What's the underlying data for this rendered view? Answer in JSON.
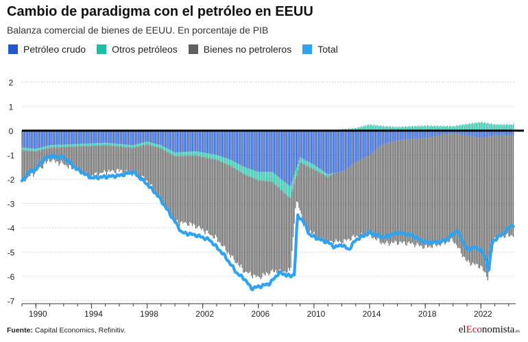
{
  "title": "Cambio de paradigma con el petróleo en EEUU",
  "subtitle": "Balanza comercial de bienes de EEUU. En porcentaje de PIB",
  "legend": [
    {
      "label": "Petróleo crudo",
      "color": "#2257cc"
    },
    {
      "label": "Otros petróleos",
      "color": "#1fbfa6"
    },
    {
      "label": "Bienes no petroleros",
      "color": "#606060"
    },
    {
      "label": "Total",
      "color": "#2ea3f2"
    }
  ],
  "footer": {
    "source_label": "Fuente:",
    "source_text": "Capital Economics, Refinitiv."
  },
  "brand": {
    "prefix": "el",
    "accent": "Eco",
    "suffix": "nomista",
    "tld": ".es"
  },
  "chart_data": {
    "type": "bar",
    "stacked": true,
    "title": "Cambio de paradigma con el petróleo en EEUU",
    "subtitle": "Balanza comercial de bienes de EEUU. En porcentaje de PIB",
    "ylim": [
      -7,
      2
    ],
    "yticks": [
      2,
      1,
      0,
      -1,
      -2,
      -3,
      -4,
      -5,
      -6,
      -7
    ],
    "xlim": [
      1989,
      2024.5
    ],
    "xticks": [
      1990,
      1994,
      1998,
      2002,
      2006,
      2010,
      2014,
      2018,
      2022
    ],
    "grid": "horizontal dotted",
    "legend_position": "top",
    "frequency": "monthly",
    "colors": {
      "crude": "#2257cc",
      "other": "#1fbfa6",
      "nonpetroleum": "#606060",
      "total": "#2ea3f2"
    },
    "series": [
      {
        "name": "Petróleo crudo",
        "key": "crude",
        "points": [
          [
            1989.0,
            -0.7
          ],
          [
            1990.0,
            -0.75
          ],
          [
            1991.0,
            -0.6
          ],
          [
            1993.0,
            -0.55
          ],
          [
            1995.0,
            -0.5
          ],
          [
            1996.0,
            -0.55
          ],
          [
            1997.0,
            -0.6
          ],
          [
            1998.0,
            -0.45
          ],
          [
            1999.0,
            -0.6
          ],
          [
            2000.0,
            -0.9
          ],
          [
            2001.5,
            -0.85
          ],
          [
            2003.0,
            -1.0
          ],
          [
            2004.0,
            -1.2
          ],
          [
            2005.0,
            -1.5
          ],
          [
            2006.0,
            -1.7
          ],
          [
            2007.0,
            -1.7
          ],
          [
            2008.3,
            -2.3
          ],
          [
            2009.0,
            -1.1
          ],
          [
            2010.0,
            -1.4
          ],
          [
            2011.0,
            -1.8
          ],
          [
            2012.0,
            -1.7
          ],
          [
            2013.0,
            -1.3
          ],
          [
            2014.0,
            -1.0
          ],
          [
            2015.0,
            -0.55
          ],
          [
            2016.0,
            -0.4
          ],
          [
            2018.0,
            -0.3
          ],
          [
            2019.0,
            -0.2
          ],
          [
            2020.0,
            -0.1
          ],
          [
            2021.0,
            -0.2
          ],
          [
            2022.0,
            -0.3
          ],
          [
            2023.0,
            -0.2
          ],
          [
            2024.3,
            -0.2
          ]
        ]
      },
      {
        "name": "Otros petróleos",
        "key": "other",
        "points": [
          [
            1989.0,
            -0.1
          ],
          [
            1993.0,
            -0.1
          ],
          [
            1997.0,
            -0.1
          ],
          [
            2000.0,
            -0.15
          ],
          [
            2003.0,
            -0.2
          ],
          [
            2005.0,
            -0.3
          ],
          [
            2007.0,
            -0.4
          ],
          [
            2008.3,
            -0.5
          ],
          [
            2009.0,
            -0.2
          ],
          [
            2010.0,
            -0.2
          ],
          [
            2011.0,
            -0.1
          ],
          [
            2011.5,
            0.0
          ],
          [
            2012.0,
            0.05
          ],
          [
            2013.0,
            0.1
          ],
          [
            2014.0,
            0.25
          ],
          [
            2015.0,
            0.18
          ],
          [
            2016.0,
            0.15
          ],
          [
            2018.0,
            0.2
          ],
          [
            2020.0,
            0.18
          ],
          [
            2022.0,
            0.35
          ],
          [
            2023.0,
            0.25
          ],
          [
            2024.3,
            0.25
          ]
        ]
      },
      {
        "name": "Bienes no petroleros",
        "key": "nonpetroleum",
        "points": [
          [
            1989.0,
            -1.3
          ],
          [
            1990.0,
            -0.85
          ],
          [
            1991.0,
            -0.5
          ],
          [
            1992.0,
            -0.7
          ],
          [
            1993.0,
            -1.0
          ],
          [
            1994.0,
            -1.25
          ],
          [
            1995.0,
            -1.1
          ],
          [
            1996.0,
            -1.0
          ],
          [
            1997.0,
            -1.05
          ],
          [
            1998.0,
            -1.5
          ],
          [
            1999.0,
            -2.1
          ],
          [
            2000.0,
            -2.7
          ],
          [
            2001.0,
            -2.8
          ],
          [
            2002.0,
            -3.0
          ],
          [
            2003.0,
            -3.25
          ],
          [
            2004.0,
            -3.7
          ],
          [
            2005.0,
            -4.0
          ],
          [
            2006.0,
            -4.0
          ],
          [
            2007.0,
            -3.7
          ],
          [
            2008.3,
            -3.0
          ],
          [
            2008.7,
            -1.0
          ],
          [
            2009.2,
            -2.5
          ],
          [
            2010.0,
            -2.7
          ],
          [
            2011.0,
            -2.7
          ],
          [
            2012.0,
            -2.9
          ],
          [
            2013.0,
            -3.05
          ],
          [
            2014.0,
            -3.3
          ],
          [
            2015.0,
            -4.1
          ],
          [
            2016.0,
            -4.2
          ],
          [
            2017.0,
            -4.3
          ],
          [
            2018.0,
            -4.5
          ],
          [
            2019.0,
            -4.5
          ],
          [
            2020.0,
            -4.4
          ],
          [
            2021.0,
            -5.2
          ],
          [
            2022.0,
            -5.3
          ],
          [
            2022.5,
            -5.8
          ],
          [
            2023.0,
            -4.2
          ],
          [
            2024.3,
            -4.1
          ]
        ]
      },
      {
        "name": "Total",
        "key": "total",
        "points": [
          [
            1989.0,
            -2.1
          ],
          [
            1989.5,
            -1.7
          ],
          [
            1990.0,
            -1.6
          ],
          [
            1990.5,
            -1.2
          ],
          [
            1991.0,
            -1.05
          ],
          [
            1992.0,
            -1.1
          ],
          [
            1993.0,
            -1.6
          ],
          [
            1994.0,
            -1.95
          ],
          [
            1995.0,
            -1.9
          ],
          [
            1996.0,
            -1.85
          ],
          [
            1997.0,
            -1.7
          ],
          [
            1998.0,
            -2.2
          ],
          [
            1998.8,
            -2.7
          ],
          [
            1999.5,
            -3.3
          ],
          [
            2000.5,
            -4.2
          ],
          [
            2001.5,
            -4.3
          ],
          [
            2002.5,
            -4.5
          ],
          [
            2003.5,
            -5.1
          ],
          [
            2004.5,
            -5.9
          ],
          [
            2005.0,
            -6.1
          ],
          [
            2005.5,
            -6.5
          ],
          [
            2006.2,
            -6.4
          ],
          [
            2006.8,
            -6.3
          ],
          [
            2007.5,
            -5.85
          ],
          [
            2008.3,
            -6.0
          ],
          [
            2008.6,
            -5.9
          ],
          [
            2008.8,
            -3.5
          ],
          [
            2009.2,
            -3.7
          ],
          [
            2009.7,
            -4.3
          ],
          [
            2010.5,
            -4.5
          ],
          [
            2011.0,
            -4.6
          ],
          [
            2011.5,
            -4.8
          ],
          [
            2012.0,
            -4.7
          ],
          [
            2012.5,
            -4.9
          ],
          [
            2013.0,
            -4.5
          ],
          [
            2014.0,
            -4.2
          ],
          [
            2015.0,
            -4.4
          ],
          [
            2016.0,
            -4.2
          ],
          [
            2017.0,
            -4.3
          ],
          [
            2018.0,
            -4.6
          ],
          [
            2019.0,
            -4.6
          ],
          [
            2019.5,
            -4.5
          ],
          [
            2020.3,
            -4.1
          ],
          [
            2021.0,
            -4.9
          ],
          [
            2021.5,
            -4.8
          ],
          [
            2022.0,
            -4.9
          ],
          [
            2022.4,
            -5.3
          ],
          [
            2022.55,
            -5.9
          ],
          [
            2022.8,
            -4.6
          ],
          [
            2023.2,
            -4.4
          ],
          [
            2023.7,
            -4.2
          ],
          [
            2024.2,
            -3.9
          ]
        ]
      }
    ]
  }
}
